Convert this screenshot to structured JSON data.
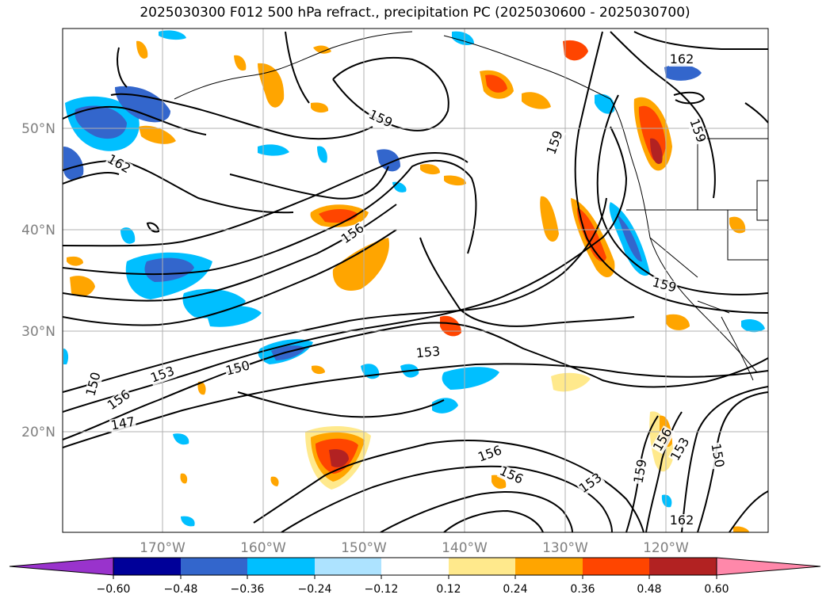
{
  "title": "2025030300 F012 500 hPa refract., precipitation PC (2025030600 - 2025030700)",
  "lat_labels": [
    "50°N",
    "40°N",
    "30°N",
    "20°N"
  ],
  "lon_labels": [
    "170°W",
    "160°W",
    "150°W",
    "140°W",
    "130°W",
    "120°W"
  ],
  "contour_labels": [
    "162",
    "162",
    "159",
    "159",
    "159",
    "156",
    "153",
    "153",
    "150",
    "150",
    "156",
    "147",
    "156",
    "156",
    "153",
    "159",
    "156",
    "153",
    "150",
    "162",
    "159"
  ],
  "colorbar": {
    "colors": [
      "#9933cc",
      "#000099",
      "#3366cc",
      "#00bfff",
      "#ade3ff",
      "#ffffff",
      "#ffe98c",
      "#ffa500",
      "#ff4500",
      "#b22222",
      "#ff88aa"
    ],
    "ticks": [
      "−0.60",
      "−0.48",
      "−0.36",
      "−0.24",
      "−0.12",
      "0.12",
      "0.24",
      "0.36",
      "0.48",
      "0.60"
    ]
  }
}
